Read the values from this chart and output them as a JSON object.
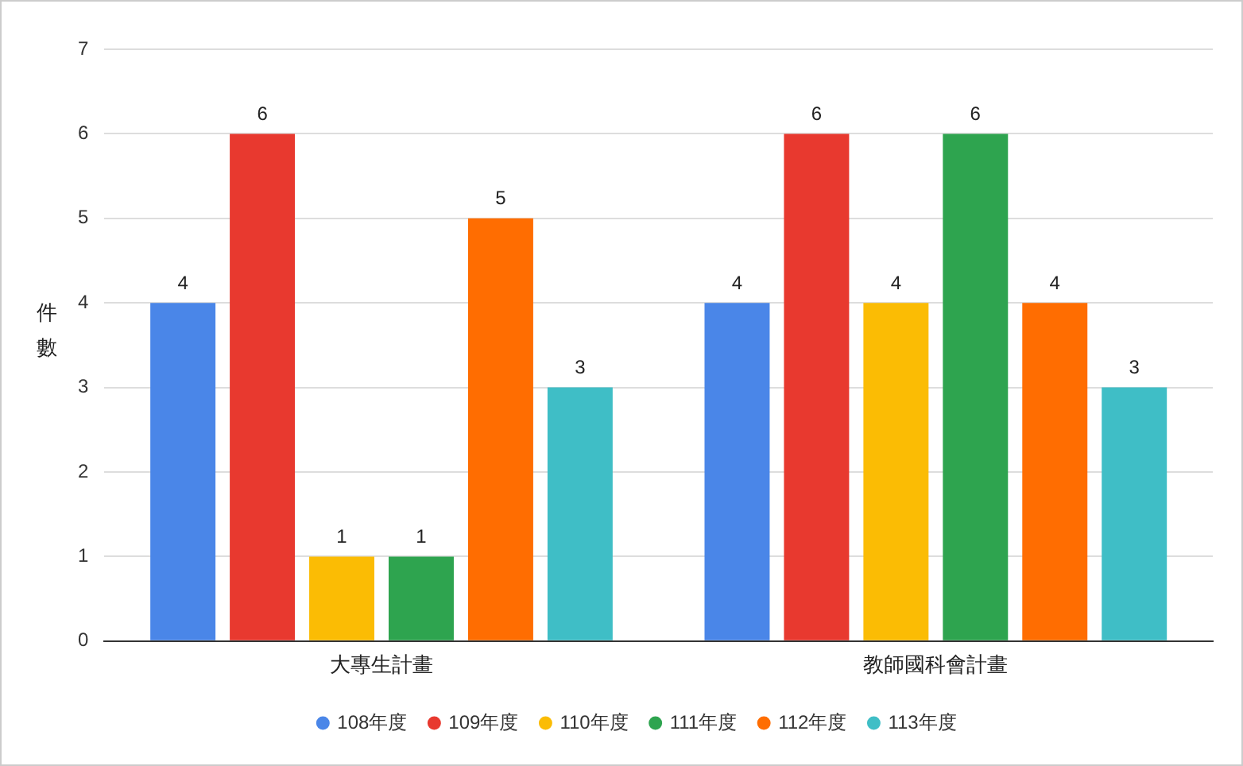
{
  "chart_data": {
    "type": "bar",
    "ylabel": "件數",
    "categories": [
      "大專生計畫",
      "教師國科會計畫"
    ],
    "series": [
      {
        "name": "108年度",
        "color": "#4a86e8",
        "values": [
          4,
          4
        ]
      },
      {
        "name": "109年度",
        "color": "#e8392f",
        "values": [
          6,
          6
        ]
      },
      {
        "name": "110年度",
        "color": "#fbbc04",
        "values": [
          1,
          4
        ]
      },
      {
        "name": "111年度",
        "color": "#2ea44f",
        "values": [
          1,
          6
        ]
      },
      {
        "name": "112年度",
        "color": "#ff6d01",
        "values": [
          5,
          4
        ]
      },
      {
        "name": "113年度",
        "color": "#3fbec6",
        "values": [
          3,
          3
        ]
      }
    ],
    "ylim": [
      0,
      7
    ],
    "yticks": [
      0,
      1,
      2,
      3,
      4,
      5,
      6,
      7
    ],
    "grid": "y",
    "legend": "bottom",
    "data_labels": true
  }
}
